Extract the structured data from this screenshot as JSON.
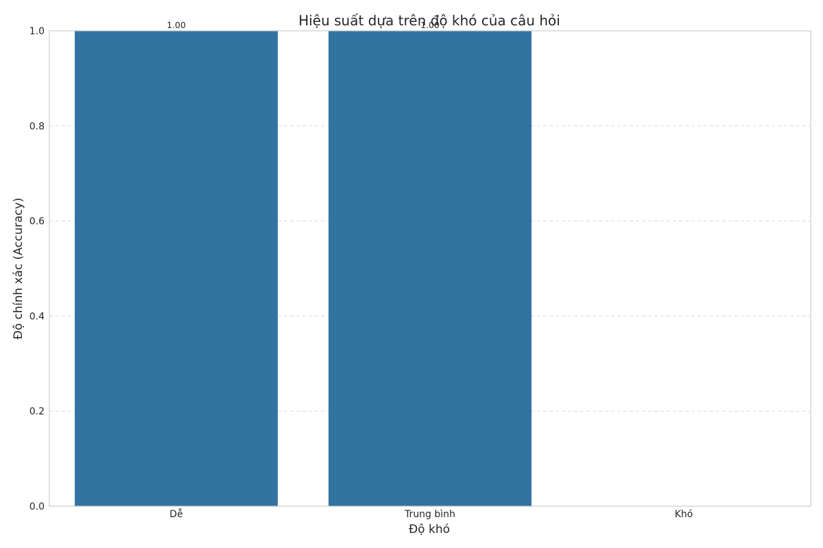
{
  "chart_data": {
    "type": "bar",
    "title": "Hiệu suất dựa trên độ khó của câu hỏi",
    "xlabel": "Độ khó",
    "ylabel": "Độ chính xác (Accuracy)",
    "categories": [
      "Dễ",
      "Trung bình",
      "Khó"
    ],
    "values": [
      1.0,
      1.0,
      0.0
    ],
    "data_labels": [
      "1.00",
      "1.00",
      ""
    ],
    "ylim": [
      0,
      1.0
    ],
    "yticks": [
      "0.0",
      "0.2",
      "0.4",
      "0.6",
      "0.8",
      "1.0"
    ],
    "grid": true,
    "bar_color": "#3274a1"
  }
}
